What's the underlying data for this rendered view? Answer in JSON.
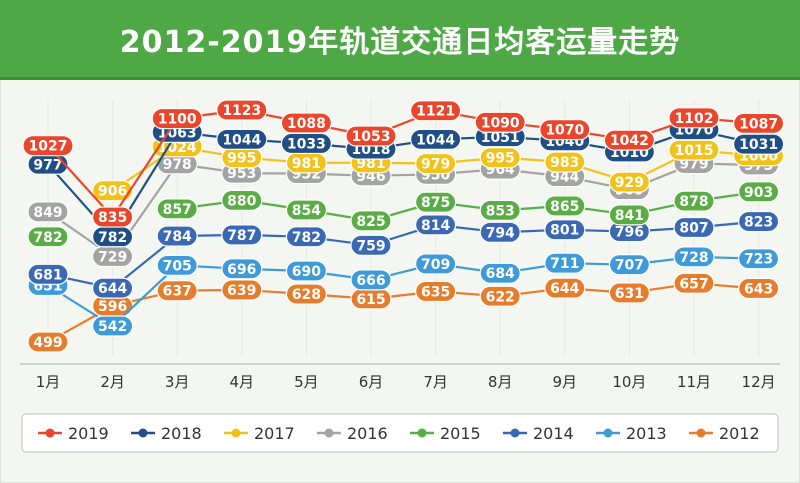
{
  "chart_data": {
    "type": "line",
    "title": "2012-2019年轨道交通日均客运量走势",
    "categories": [
      "1月",
      "2月",
      "3月",
      "4月",
      "5月",
      "6月",
      "7月",
      "8月",
      "9月",
      "10月",
      "11月",
      "12月"
    ],
    "legend_position": "bottom",
    "series": [
      {
        "name": "2019",
        "color": "#e9462c",
        "values": [
          1027,
          835,
          1100,
          1123,
          1088,
          1053,
          1121,
          1090,
          1070,
          1042,
          1102,
          1087
        ]
      },
      {
        "name": "2018",
        "color": "#1f4f85",
        "values": [
          977,
          782,
          1063,
          1044,
          1033,
          1018,
          1044,
          1051,
          1040,
          1010,
          1070,
          1031
        ]
      },
      {
        "name": "2017",
        "color": "#f2c21b",
        "values": [
          null,
          906,
          1024,
          995,
          981,
          981,
          979,
          995,
          983,
          929,
          1015,
          1000
        ]
      },
      {
        "name": "2016",
        "color": "#a3a3a3",
        "values": [
          849,
          729,
          978,
          953,
          952,
          946,
          950,
          964,
          944,
          909,
          979,
          975
        ]
      },
      {
        "name": "2015",
        "color": "#5aac45",
        "values": [
          782,
          null,
          857,
          880,
          854,
          825,
          875,
          853,
          865,
          841,
          878,
          903
        ]
      },
      {
        "name": "2014",
        "color": "#3a68b3",
        "values": [
          681,
          644,
          784,
          787,
          782,
          759,
          814,
          794,
          801,
          796,
          807,
          823
        ]
      },
      {
        "name": "2013",
        "color": "#3f9ad8",
        "values": [
          651,
          542,
          705,
          696,
          690,
          666,
          709,
          684,
          711,
          707,
          728,
          723
        ]
      },
      {
        "name": "2012",
        "color": "#e57d2c",
        "values": [
          499,
          596,
          637,
          639,
          628,
          615,
          635,
          622,
          644,
          631,
          657,
          643
        ]
      }
    ]
  }
}
